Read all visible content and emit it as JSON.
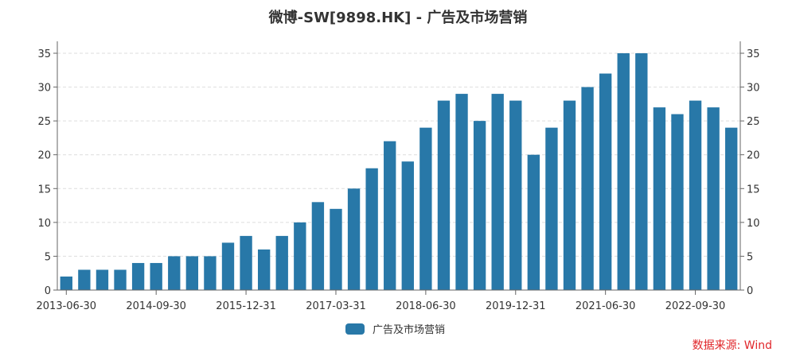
{
  "title": "微博-SW[9898.HK] - 广告及市场营销",
  "legend": {
    "label": "广告及市场营销",
    "color": "#2878a8"
  },
  "source": "数据来源: Wind",
  "chart_data": {
    "type": "bar",
    "title": "微博-SW[9898.HK] - 广告及市场营销",
    "xlabel": "",
    "ylabel": "",
    "ylim": [
      0,
      36
    ],
    "yticks": [
      0,
      5,
      10,
      15,
      20,
      25,
      30,
      35
    ],
    "grid": true,
    "dual_y_axis_mirrored": true,
    "legend_position": "bottom",
    "xtick_labels": [
      "2013-06-30",
      "2014-09-30",
      "2015-12-31",
      "2017-03-31",
      "2018-06-30",
      "2019-12-31",
      "2021-06-30",
      "2022-09-30"
    ],
    "xtick_indices": [
      0,
      5,
      10,
      15,
      20,
      25,
      30,
      35
    ],
    "categories": [
      "2013-06-30",
      "2013-09-30",
      "2013-12-31",
      "2014-03-31",
      "2014-06-30",
      "2014-09-30",
      "2014-12-31",
      "2015-03-31",
      "2015-06-30",
      "2015-09-30",
      "2015-12-31",
      "2016-03-31",
      "2016-06-30",
      "2016-09-30",
      "2016-12-31",
      "2017-03-31",
      "2017-06-30",
      "2017-09-30",
      "2017-12-31",
      "2018-03-31",
      "2018-06-30",
      "2018-09-30",
      "2018-12-31",
      "2019-03-31",
      "2019-06-30",
      "2019-12-31",
      "2020-03-31",
      "2020-06-30",
      "2020-09-30",
      "2020-12-31",
      "2021-06-30",
      "2021-09-30",
      "2021-12-31",
      "2022-03-31",
      "2022-06-30",
      "2022-09-30",
      "2022-12-31",
      "2023-03-31"
    ],
    "series": [
      {
        "name": "广告及市场营销",
        "color": "#2878a8",
        "values": [
          2,
          3,
          3,
          3,
          4,
          4,
          5,
          5,
          5,
          7,
          8,
          6,
          8,
          10,
          13,
          12,
          15,
          18,
          22,
          19,
          24,
          28,
          29,
          25,
          29,
          28,
          20,
          24,
          28,
          30,
          32,
          35,
          35,
          27,
          26,
          28,
          27,
          24
        ]
      }
    ]
  }
}
